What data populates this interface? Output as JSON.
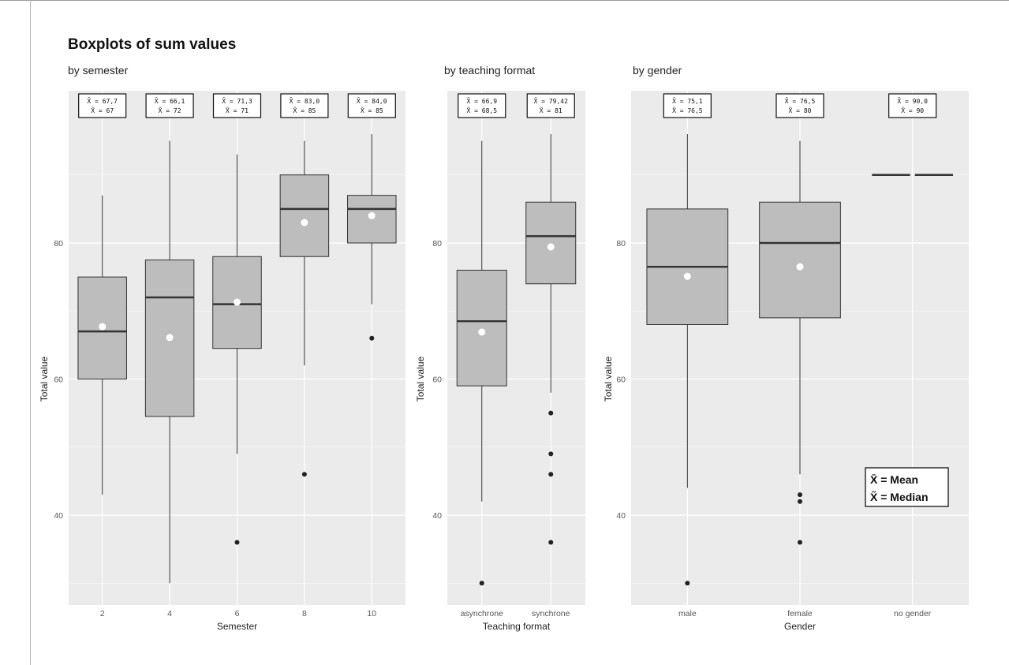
{
  "chart_data": {
    "type": "boxplot",
    "title": "Boxplots of sum values",
    "ylabel": "Total value",
    "ylim": [
      26,
      98
    ],
    "yticks": [
      40,
      60,
      80
    ],
    "legend": {
      "placement": "bottom-right of 'by gender' panel",
      "items": [
        "X̄ = Mean",
        "X̃ = Median"
      ]
    },
    "panels": [
      {
        "subtitle": "by semester",
        "xlabel": "Semester",
        "groups": [
          {
            "label": "2",
            "stat_mean": "X̄ = 67,7",
            "stat_median": "X̃ = 67",
            "mean": 67.7,
            "median": 67,
            "q1": 60,
            "q3": 75,
            "whisker_low": 43,
            "whisker_high": 87,
            "outliers": []
          },
          {
            "label": "4",
            "stat_mean": "X̄ = 66,1",
            "stat_median": "X̃ = 72",
            "mean": 66.1,
            "median": 72,
            "q1": 54.5,
            "q3": 77.5,
            "whisker_low": 30,
            "whisker_high": 95,
            "outliers": []
          },
          {
            "label": "6",
            "stat_mean": "X̄ = 71,3",
            "stat_median": "X̃ = 71",
            "mean": 71.3,
            "median": 71,
            "q1": 64.5,
            "q3": 78,
            "whisker_low": 49,
            "whisker_high": 93,
            "outliers": [
              36
            ]
          },
          {
            "label": "8",
            "stat_mean": "X̄ = 83,0",
            "stat_median": "X̃ = 85",
            "mean": 83,
            "median": 85,
            "q1": 78,
            "q3": 90,
            "whisker_low": 62,
            "whisker_high": 95,
            "outliers": [
              46
            ]
          },
          {
            "label": "10",
            "stat_mean": "X̄ = 84,0",
            "stat_median": "X̃ = 85",
            "mean": 84,
            "median": 85,
            "q1": 80,
            "q3": 87,
            "whisker_low": 71,
            "whisker_high": 96,
            "outliers": [
              66
            ]
          }
        ]
      },
      {
        "subtitle": "by teaching format",
        "xlabel": "Teaching format",
        "groups": [
          {
            "label": "asynchrone",
            "stat_mean": "X̄ = 66,9",
            "stat_median": "X̃ = 68,5",
            "mean": 66.9,
            "median": 68.5,
            "q1": 59,
            "q3": 76,
            "whisker_low": 42,
            "whisker_high": 95,
            "outliers": [
              30
            ]
          },
          {
            "label": "synchrone",
            "stat_mean": "X̄ = 79,42",
            "stat_median": "X̃ = 81",
            "mean": 79.42,
            "median": 81,
            "q1": 74,
            "q3": 86,
            "whisker_low": 58,
            "whisker_high": 96,
            "outliers": [
              55,
              49,
              46,
              36
            ]
          }
        ]
      },
      {
        "subtitle": "by gender",
        "xlabel": "Gender",
        "groups": [
          {
            "label": "male",
            "stat_mean": "X̄ = 75,1",
            "stat_median": "X̃ = 76,5",
            "mean": 75.1,
            "median": 76.5,
            "q1": 68,
            "q3": 85,
            "whisker_low": 44,
            "whisker_high": 96,
            "outliers": [
              30
            ]
          },
          {
            "label": "female",
            "stat_mean": "X̄ = 76,5",
            "stat_median": "X̃ = 80",
            "mean": 76.5,
            "median": 80,
            "q1": 69,
            "q3": 86,
            "whisker_low": 46,
            "whisker_high": 95,
            "outliers": [
              43,
              42,
              36
            ]
          },
          {
            "label": "no gender",
            "stat_mean": "X̄ = 90,0",
            "stat_median": "X̃ = 90",
            "mean": 90,
            "median": 90,
            "q1": 90,
            "q3": 90,
            "whisker_low": 90,
            "whisker_high": 90,
            "outliers": []
          }
        ]
      }
    ],
    "colors": {
      "panel_bg": "#ebebeb",
      "grid": "#ffffff",
      "box_fill": "#bdbdbd",
      "box_stroke": "#333333",
      "median": "#333333",
      "mean_point": "#ffffff",
      "outlier": "#222222"
    }
  }
}
